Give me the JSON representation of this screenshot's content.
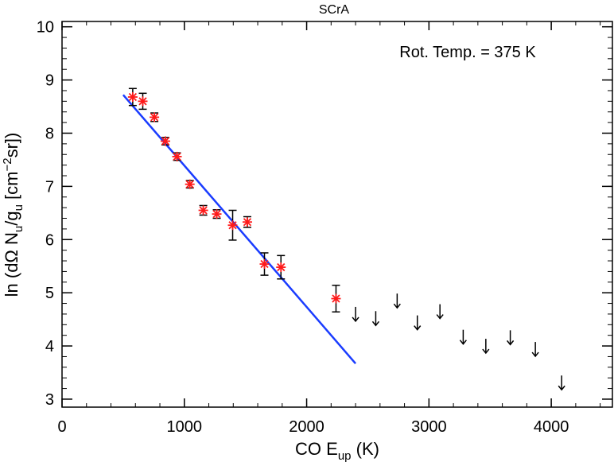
{
  "chart_data": {
    "type": "scatter",
    "title": "SCrA",
    "xlabel": {
      "main": "CO E",
      "sub": "up",
      "unit": " (K)"
    },
    "ylabel": {
      "p1": "ln (dΩ N",
      "s1": "u",
      "p2": "/g",
      "s2": "u",
      "p3": " [cm",
      "sup": "−2",
      "p4": "sr])"
    },
    "annotation": "Rot. Temp. = 375 K",
    "xlim": [
      0,
      4500
    ],
    "ylim": [
      2.85,
      10.1
    ],
    "x_ticks": [
      0,
      1000,
      2000,
      3000,
      4000
    ],
    "y_ticks": [
      3,
      4,
      5,
      6,
      7,
      8,
      9,
      10
    ],
    "x_minor_step": 200,
    "y_minor_step": 0.2,
    "colors": {
      "points": "#ff1a1a",
      "fit": "#1a3cff",
      "annotation": "#1a3cff",
      "axes": "#000000"
    },
    "detections": [
      {
        "x": 578,
        "y": 8.68,
        "err": 0.16
      },
      {
        "x": 660,
        "y": 8.6,
        "err": 0.15
      },
      {
        "x": 755,
        "y": 8.3,
        "err": 0.08
      },
      {
        "x": 845,
        "y": 7.85,
        "err": 0.07
      },
      {
        "x": 940,
        "y": 7.56,
        "err": 0.07
      },
      {
        "x": 1045,
        "y": 7.04,
        "err": 0.07
      },
      {
        "x": 1155,
        "y": 6.55,
        "err": 0.09
      },
      {
        "x": 1265,
        "y": 6.48,
        "err": 0.08
      },
      {
        "x": 1395,
        "y": 6.27,
        "err": 0.28
      },
      {
        "x": 1515,
        "y": 6.33,
        "err": 0.1
      },
      {
        "x": 1655,
        "y": 5.54,
        "err": 0.21
      },
      {
        "x": 1790,
        "y": 5.48,
        "err": 0.22
      },
      {
        "x": 2240,
        "y": 4.89,
        "err": 0.25
      }
    ],
    "upper_limits": [
      {
        "x": 2400,
        "y": 4.6
      },
      {
        "x": 2565,
        "y": 4.52
      },
      {
        "x": 2740,
        "y": 4.85
      },
      {
        "x": 2905,
        "y": 4.44
      },
      {
        "x": 3090,
        "y": 4.65
      },
      {
        "x": 3280,
        "y": 4.17
      },
      {
        "x": 3465,
        "y": 4.0
      },
      {
        "x": 3665,
        "y": 4.16
      },
      {
        "x": 3870,
        "y": 3.94
      },
      {
        "x": 4085,
        "y": 3.31
      }
    ],
    "fit_line": {
      "x": [
        500,
        2400
      ],
      "y": [
        8.72,
        3.67
      ]
    }
  }
}
